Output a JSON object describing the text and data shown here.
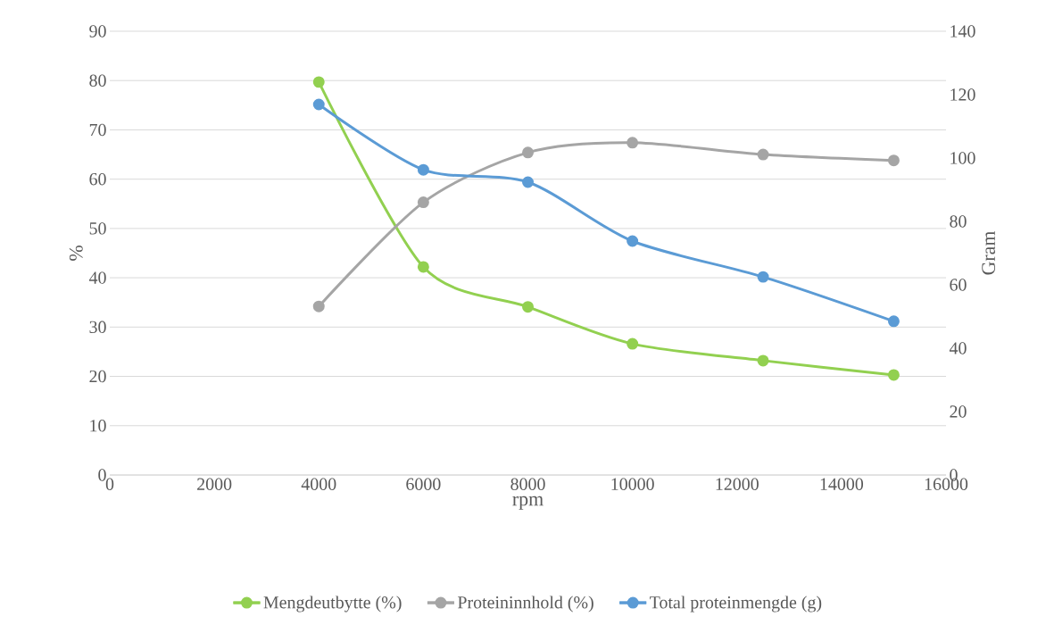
{
  "chart_data": {
    "type": "line",
    "xlabel": "rpm",
    "ylabel": "%",
    "y2label": "Gram",
    "x": [
      4000,
      6000,
      8000,
      10000,
      12500,
      15000
    ],
    "xlim": [
      0,
      16000
    ],
    "xticks": [
      0,
      2000,
      4000,
      6000,
      8000,
      10000,
      12000,
      14000,
      16000
    ],
    "ylim": [
      0,
      90
    ],
    "yticks": [
      0,
      10,
      20,
      30,
      40,
      50,
      60,
      70,
      80,
      90
    ],
    "y2lim": [
      0,
      140
    ],
    "y2ticks": [
      0,
      20,
      40,
      60,
      80,
      100,
      120,
      140
    ],
    "grid": "y",
    "legend": "bottom",
    "marker": "circle",
    "series": [
      {
        "name": "Mengdeutbytte (%)",
        "color": "#92d050",
        "values": [
          79.7,
          42.2,
          34.1,
          26.6,
          23.2,
          20.3
        ]
      },
      {
        "name": "Proteininnhold (%)",
        "color": "#a5a5a5",
        "values": [
          34.2,
          55.3,
          65.4,
          67.4,
          65.0,
          63.8
        ]
      },
      {
        "name": "Total proteinmengde (g)",
        "color": "#5b9bd5",
        "axis": "y2",
        "values": [
          116.9,
          96.3,
          92.4,
          73.8,
          62.5,
          48.5
        ]
      }
    ]
  }
}
